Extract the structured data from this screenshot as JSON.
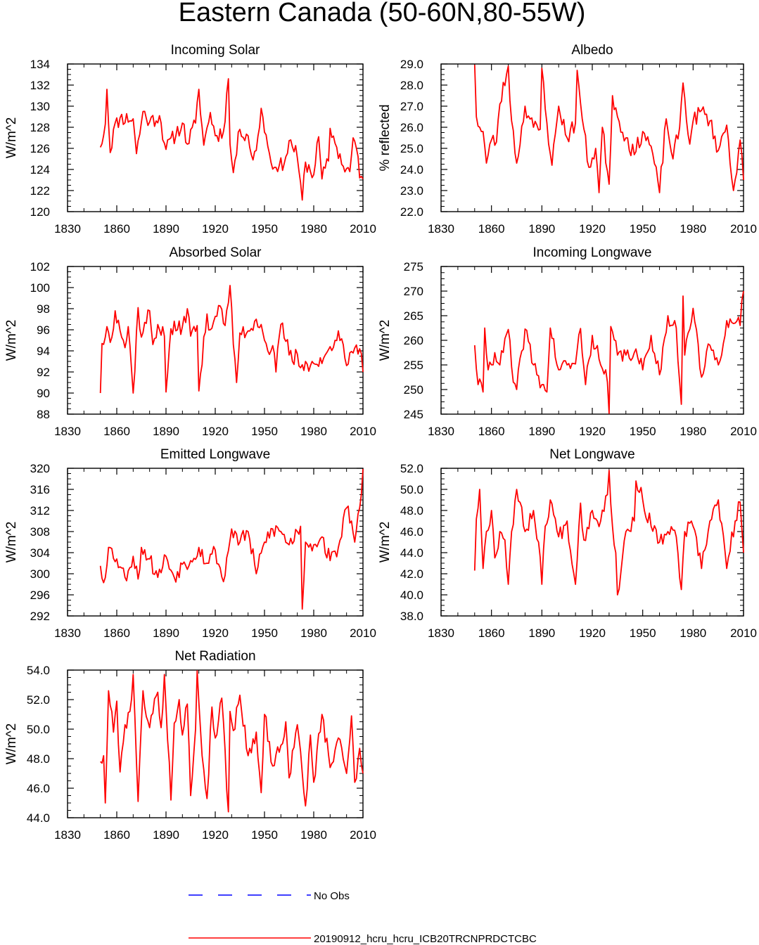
{
  "title": "Eastern Canada (50-60N,80-55W)",
  "legend": {
    "entries": [
      {
        "label": "No Obs",
        "color": "#0000ff",
        "style": "dashed"
      },
      {
        "label": "20190912_hcru_hcru_ICB20TRCNPRDCTCBC",
        "color": "#ff0000",
        "style": "solid"
      }
    ]
  },
  "chart_data": [
    {
      "type": "line",
      "title": "Incoming Solar",
      "ylabel": "W/m^2",
      "xlim": [
        1830,
        2010
      ],
      "xticks": [
        "1830",
        "1860",
        "1890",
        "1920",
        "1950",
        "1980",
        "2010"
      ],
      "ylim": [
        120,
        134
      ],
      "yticks": [
        "120",
        "122",
        "124",
        "126",
        "128",
        "130",
        "132",
        "134"
      ],
      "seed": 11,
      "x_start": 1850,
      "x_end": 2010,
      "series": [
        {
          "name": "20190912_hcru_hcru_ICB20TRCNPRDCTCBC",
          "color": "#ff0000",
          "x": [
            1850,
            1853,
            1854,
            1856,
            1858,
            1862,
            1870,
            1872,
            1876,
            1880,
            1886,
            1890,
            1900,
            1903,
            1908,
            1910,
            1913,
            1917,
            1920,
            1925,
            1928,
            1929,
            1931,
            1935,
            1940,
            1943,
            1945,
            1948,
            1952,
            1956,
            1957,
            1958,
            1963,
            1966,
            1970,
            1973,
            1975,
            1980,
            1983,
            1985,
            1989,
            1990,
            1994,
            1998,
            2002,
            2004,
            2006,
            2008,
            2010
          ],
          "y": [
            126.1,
            128.3,
            131.6,
            125.6,
            127.8,
            128.9,
            128.8,
            125.5,
            129.5,
            128.5,
            129.1,
            125.9,
            128.4,
            126.4,
            128.4,
            131.6,
            126.3,
            129.4,
            127.2,
            127.6,
            132.6,
            126.4,
            123.7,
            127.8,
            127.2,
            124.9,
            125.8,
            129.8,
            126.2,
            124.2,
            124.2,
            123.8,
            125.2,
            126.8,
            125.1,
            121.1,
            124.7,
            123.5,
            127.1,
            123.1,
            124.8,
            127.9,
            126.1,
            124.3,
            123.8,
            127.0,
            126.0,
            123.2,
            123.1
          ]
        }
      ]
    },
    {
      "type": "line",
      "title": "Albedo",
      "ylabel": "% reflected",
      "xlim": [
        1830,
        2010
      ],
      "xticks": [
        "1830",
        "1860",
        "1890",
        "1920",
        "1950",
        "1980",
        "2010"
      ],
      "ylim": [
        22,
        29
      ],
      "yticks": [
        "22.0",
        "23.0",
        "24.0",
        "25.0",
        "26.0",
        "27.0",
        "28.0",
        "29.0"
      ],
      "seed": 23,
      "x_start": 1850,
      "x_end": 2010,
      "series": [
        {
          "name": "20190912_hcru_hcru_ICB20TRCNPRDCTCBC",
          "color": "#ff0000",
          "x": [
            1850,
            1851,
            1853,
            1855,
            1857,
            1860,
            1863,
            1865,
            1870,
            1872,
            1875,
            1880,
            1885,
            1889,
            1890,
            1893,
            1896,
            1900,
            1905,
            1910,
            1911,
            1914,
            1918,
            1922,
            1924,
            1926,
            1930,
            1932,
            1935,
            1940,
            1945,
            1950,
            1955,
            1960,
            1964,
            1968,
            1972,
            1974,
            1978,
            1980,
            1985,
            1990,
            1995,
            2000,
            2004,
            2008,
            2010
          ],
          "y": [
            29.0,
            26.5,
            26.0,
            25.8,
            24.3,
            25.4,
            25.3,
            27.1,
            28.9,
            26.3,
            24.3,
            27.0,
            26.0,
            25.9,
            28.8,
            26.2,
            24.2,
            27.0,
            25.5,
            26.2,
            28.7,
            26.4,
            24.1,
            25.0,
            22.9,
            26.0,
            23.3,
            27.5,
            26.5,
            25.5,
            24.7,
            25.8,
            25.1,
            22.9,
            26.4,
            24.5,
            26.0,
            28.1,
            25.2,
            26.3,
            26.8,
            26.3,
            24.9,
            26.1,
            23.0,
            25.4,
            23.5
          ]
        }
      ]
    },
    {
      "type": "line",
      "title": "Absorbed Solar",
      "ylabel": "W/m^2",
      "xlim": [
        1830,
        2010
      ],
      "xticks": [
        "1830",
        "1860",
        "1890",
        "1920",
        "1950",
        "1980",
        "2010"
      ],
      "ylim": [
        88,
        102
      ],
      "yticks": [
        "88",
        "90",
        "92",
        "94",
        "96",
        "98",
        "100",
        "102"
      ],
      "seed": 37,
      "x_start": 1850,
      "x_end": 2010,
      "series": [
        {
          "name": "20190912_hcru_hcru_ICB20TRCNPRDCTCBC",
          "color": "#ff0000",
          "x": [
            1850,
            1851,
            1853,
            1854,
            1856,
            1859,
            1861,
            1865,
            1867,
            1870,
            1873,
            1875,
            1880,
            1882,
            1885,
            1889,
            1890,
            1893,
            1897,
            1900,
            1903,
            1905,
            1909,
            1910,
            1915,
            1917,
            1922,
            1926,
            1929,
            1931,
            1933,
            1935,
            1940,
            1945,
            1948,
            1950,
            1952,
            1955,
            1957,
            1960,
            1963,
            1967,
            1970,
            1972,
            1975,
            1978,
            1980,
            1985,
            1990,
            1995,
            2000,
            2004,
            2008,
            2010
          ],
          "y": [
            90.0,
            94.7,
            95.3,
            96.3,
            94.8,
            97.8,
            96.9,
            94.3,
            96.3,
            90.0,
            98.1,
            95.3,
            97.8,
            94.6,
            96.5,
            95.4,
            90.1,
            96.1,
            96.0,
            96.3,
            98.0,
            95.4,
            96.4,
            90.2,
            97.5,
            96.0,
            98.3,
            96.4,
            100.2,
            94.6,
            91.0,
            95.7,
            95.9,
            97.0,
            96.5,
            95.0,
            94.0,
            94.5,
            92.0,
            96.5,
            94.9,
            93.0,
            93.7,
            92.4,
            93.0,
            92.6,
            92.8,
            92.8,
            94.4,
            95.9,
            92.6,
            93.8,
            94.2,
            92.0
          ]
        }
      ]
    },
    {
      "type": "line",
      "title": "Incoming Longwave",
      "ylabel": "W/m^2",
      "xlim": [
        1830,
        2010
      ],
      "xticks": [
        "1830",
        "1860",
        "1890",
        "1920",
        "1950",
        "1980",
        "2010"
      ],
      "ylim": [
        245,
        275
      ],
      "yticks": [
        "245",
        "250",
        "255",
        "260",
        "265",
        "270",
        "275"
      ],
      "seed": 41,
      "x_start": 1850,
      "x_end": 2010,
      "series": [
        {
          "name": "20190912_hcru_hcru_ICB20TRCNPRDCTCBC",
          "color": "#ff0000",
          "x": [
            1850,
            1852,
            1855,
            1856,
            1858,
            1862,
            1865,
            1870,
            1873,
            1875,
            1880,
            1885,
            1890,
            1893,
            1895,
            1900,
            1905,
            1910,
            1913,
            1916,
            1920,
            1925,
            1929,
            1930,
            1931,
            1935,
            1940,
            1945,
            1950,
            1955,
            1960,
            1965,
            1970,
            1973,
            1974,
            1975,
            1980,
            1985,
            1990,
            1995,
            2000,
            2005,
            2008,
            2010
          ],
          "y": [
            259.0,
            251.0,
            249.5,
            262.5,
            254.0,
            257.5,
            255.0,
            262.2,
            251.5,
            250.0,
            262.3,
            255.0,
            251.0,
            249.5,
            262.5,
            254.0,
            255.0,
            255.2,
            262.4,
            251.0,
            261.0,
            255.0,
            251.5,
            245.0,
            262.8,
            257.0,
            257.0,
            257.5,
            254.0,
            261.0,
            253.0,
            265.0,
            262.5,
            247.0,
            269.0,
            257.0,
            266.5,
            252.5,
            259.0,
            255.0,
            264.0,
            263.5,
            263.0,
            270.0
          ]
        }
      ]
    },
    {
      "type": "line",
      "title": "Emitted Longwave",
      "ylabel": "W/m^2",
      "xlim": [
        1830,
        2010
      ],
      "xticks": [
        "1830",
        "1860",
        "1890",
        "1920",
        "1950",
        "1980",
        "2010"
      ],
      "ylim": [
        292,
        320
      ],
      "yticks": [
        "292",
        "296",
        "300",
        "304",
        "308",
        "312",
        "316",
        "320"
      ],
      "seed": 53,
      "x_start": 1850,
      "x_end": 2010,
      "series": [
        {
          "name": "20190912_hcru_hcru_ICB20TRCNPRDCTCBC",
          "color": "#ff0000",
          "x": [
            1850,
            1852,
            1855,
            1860,
            1865,
            1870,
            1873,
            1875,
            1880,
            1885,
            1890,
            1895,
            1900,
            1905,
            1910,
            1915,
            1920,
            1925,
            1930,
            1935,
            1940,
            1945,
            1950,
            1955,
            1960,
            1965,
            1970,
            1972,
            1973,
            1975,
            1980,
            1985,
            1990,
            1995,
            2000,
            2003,
            2005,
            2008,
            2010
          ],
          "y": [
            301.5,
            298.3,
            305.0,
            302.8,
            299.3,
            303.3,
            299.0,
            305.0,
            302.8,
            299.3,
            303.3,
            299.3,
            301.8,
            302.5,
            305.0,
            302.0,
            304.5,
            298.5,
            308.5,
            306.0,
            308.0,
            300.0,
            306.0,
            308.5,
            308.0,
            305.5,
            308.0,
            309.0,
            293.3,
            306.0,
            305.5,
            307.0,
            302.5,
            305.0,
            312.5,
            310.0,
            306.0,
            312.5,
            320.0
          ]
        }
      ]
    },
    {
      "type": "line",
      "title": "Net Longwave",
      "ylabel": "W/m^2",
      "xlim": [
        1830,
        2010
      ],
      "xticks": [
        "1830",
        "1860",
        "1890",
        "1920",
        "1950",
        "1980",
        "2010"
      ],
      "ylim": [
        38,
        52
      ],
      "yticks": [
        "38.0",
        "40.0",
        "42.0",
        "44.0",
        "46.0",
        "48.0",
        "50.0",
        "52.0"
      ],
      "seed": 67,
      "x_start": 1850,
      "x_end": 2010,
      "series": [
        {
          "name": "20190912_hcru_hcru_ICB20TRCNPRDCTCBC",
          "color": "#ff0000",
          "x": [
            1850,
            1851,
            1853,
            1855,
            1857,
            1860,
            1862,
            1865,
            1868,
            1870,
            1872,
            1875,
            1880,
            1885,
            1888,
            1890,
            1892,
            1895,
            1900,
            1905,
            1910,
            1913,
            1915,
            1920,
            1925,
            1929,
            1930,
            1932,
            1934,
            1935,
            1940,
            1945,
            1946,
            1950,
            1955,
            1960,
            1965,
            1970,
            1973,
            1975,
            1980,
            1985,
            1990,
            1995,
            2000,
            2005,
            2008,
            2010
          ],
          "y": [
            42.3,
            47.2,
            50.0,
            42.5,
            46.0,
            48.0,
            43.5,
            46.0,
            45.2,
            41.0,
            46.0,
            50.0,
            46.0,
            48.0,
            45.0,
            41.0,
            46.5,
            49.0,
            45.5,
            47.0,
            41.0,
            48.7,
            45.2,
            48.0,
            47.0,
            49.5,
            51.8,
            46.5,
            44.0,
            40.0,
            46.0,
            47.0,
            50.8,
            49.0,
            46.5,
            45.0,
            46.0,
            45.5,
            40.5,
            46.0,
            46.5,
            42.5,
            47.0,
            49.0,
            42.5,
            47.0,
            48.8,
            44.0
          ]
        }
      ]
    },
    {
      "type": "line",
      "title": "Net Radiation",
      "ylabel": "W/m^2",
      "xlim": [
        1830,
        2010
      ],
      "xticks": [
        "1830",
        "1860",
        "1890",
        "1920",
        "1950",
        "1980",
        "2010"
      ],
      "ylim": [
        44,
        54
      ],
      "yticks": [
        "44.0",
        "46.0",
        "48.0",
        "50.0",
        "52.0",
        "54.0"
      ],
      "seed": 79,
      "x_start": 1850,
      "x_end": 2010,
      "series": [
        {
          "name": "20190912_hcru_hcru_ICB20TRCNPRDCTCBC",
          "color": "#ff0000",
          "x": [
            1850,
            1851,
            1852,
            1853,
            1855,
            1858,
            1860,
            1862,
            1865,
            1868,
            1870,
            1872,
            1873,
            1876,
            1880,
            1885,
            1887,
            1889,
            1890,
            1893,
            1895,
            1898,
            1900,
            1903,
            1905,
            1908,
            1909,
            1912,
            1915,
            1918,
            1920,
            1924,
            1928,
            1929,
            1931,
            1935,
            1940,
            1945,
            1948,
            1950,
            1955,
            1960,
            1963,
            1965,
            1970,
            1975,
            1978,
            1980,
            1985,
            1990,
            1995,
            2000,
            2003,
            2005,
            2008,
            2010
          ],
          "y": [
            47.8,
            47.7,
            48.2,
            45.0,
            52.6,
            49.8,
            51.9,
            47.1,
            50.3,
            51.2,
            53.7,
            47.8,
            45.1,
            52.6,
            50.1,
            52.5,
            50.1,
            53.7,
            51.5,
            45.2,
            50.4,
            52.0,
            49.6,
            51.7,
            45.5,
            50.0,
            54.0,
            48.2,
            45.3,
            51.5,
            49.4,
            52.1,
            44.4,
            51.2,
            49.9,
            52.3,
            48.2,
            49.8,
            45.7,
            51.0,
            47.5,
            48.9,
            50.5,
            46.7,
            50.3,
            44.8,
            49.6,
            46.4,
            51.0,
            47.4,
            49.4,
            47.0,
            50.9,
            46.4,
            48.7,
            47.0
          ]
        }
      ]
    }
  ]
}
